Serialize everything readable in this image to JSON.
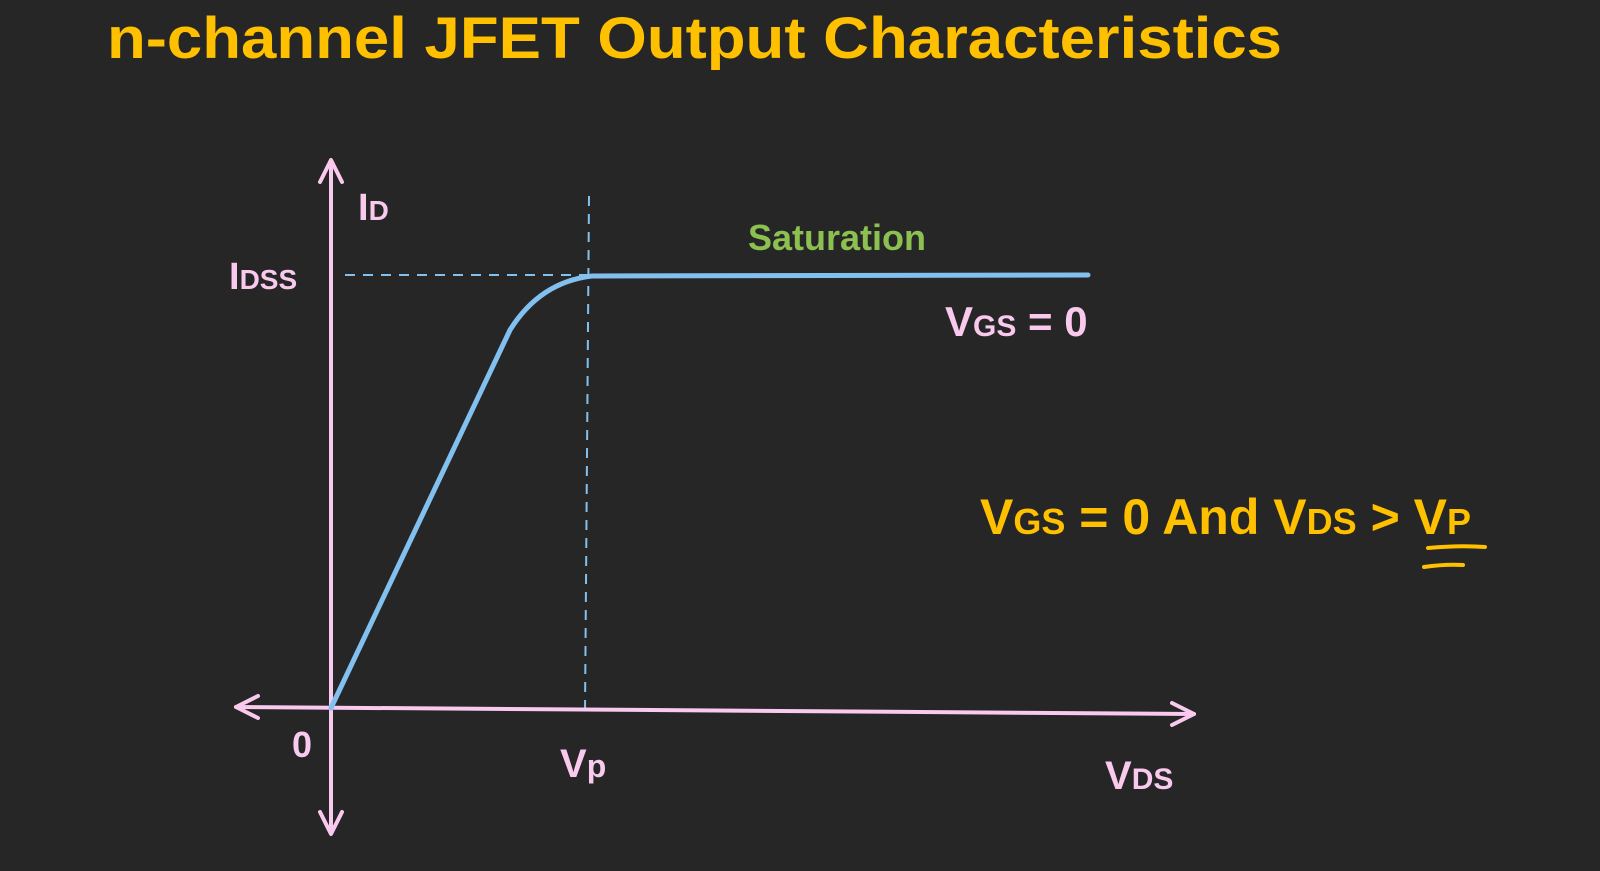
{
  "title": "n-channel JFET Output Characteristics",
  "colors": {
    "background": "#262626",
    "title": "#FFC000",
    "axes": "#F9C9EE",
    "curve": "#82C0F0",
    "saturation_label": "#8CC152",
    "condition": "#FFC000"
  },
  "diagram": {
    "y_axis_label": {
      "main": "I",
      "sub": "D"
    },
    "idss_label": {
      "main": "I",
      "sub": "DSS"
    },
    "origin_label": "0",
    "vp_label": {
      "main": "V",
      "sub": "p"
    },
    "x_axis_label": {
      "main": "V",
      "sub": "DS"
    },
    "region_label": "Saturation",
    "curve_label": {
      "main": "V",
      "sub": "GS",
      "rest": " = 0"
    },
    "condition": {
      "v1": "V",
      "s1": "GS",
      "t1": " = 0 And ",
      "v2": "V",
      "s2": "DS",
      "t2": " > ",
      "v3": "V",
      "s3": "P"
    }
  }
}
